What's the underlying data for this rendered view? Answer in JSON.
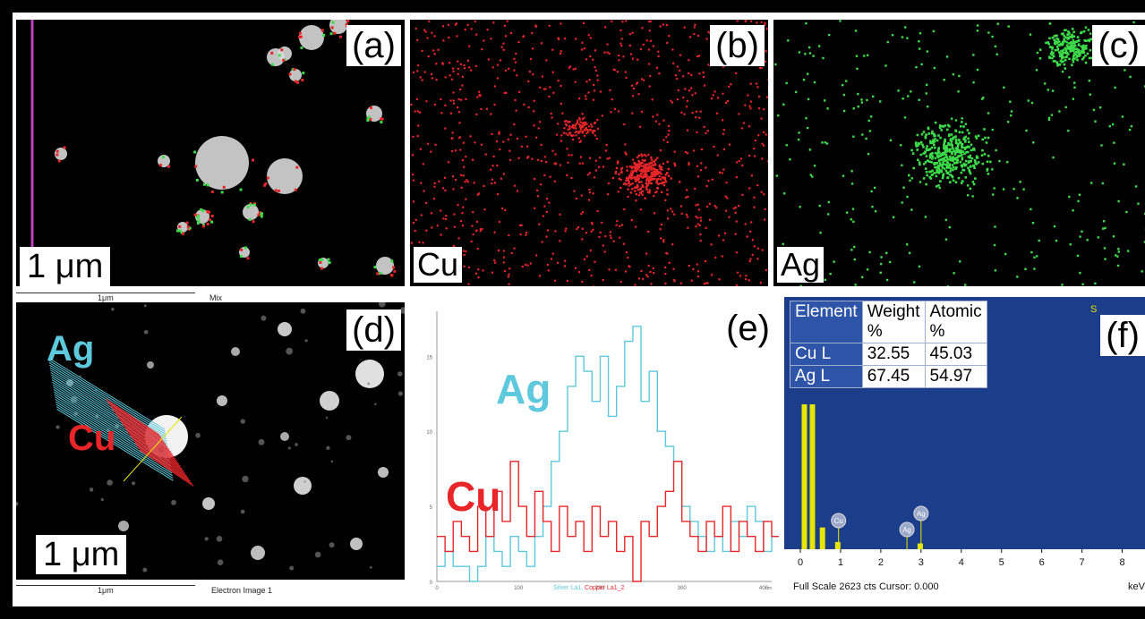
{
  "panels": {
    "a": {
      "label": "(a)",
      "scale_text": "1 μm",
      "scalebar_caption": "1μm",
      "image_caption": "Mix"
    },
    "b": {
      "label": "(b)",
      "element": "Cu"
    },
    "c": {
      "label": "(c)",
      "element": "Ag"
    },
    "d": {
      "label": "(d)",
      "scale_text": "1 μm",
      "scalebar_caption": "1μm",
      "image_caption": "Electron Image 1",
      "ag_label": "Ag",
      "cu_label": "Cu"
    },
    "e": {
      "label": "(e)",
      "ag_label": "Ag",
      "cu_label": "Cu",
      "legend_silver": "Silver La1,",
      "legend_copper": "Copper La1_2",
      "x_unit": "nm"
    },
    "f": {
      "label": "(f)",
      "footer": "Full Scale 2623 cts Cursor: 0.000",
      "x_unit": "keV",
      "corner_text": "S"
    }
  },
  "table": {
    "headers": [
      "Element",
      "Weight %",
      "Atomic %"
    ],
    "header_lines": [
      [
        "Element",
        ""
      ],
      [
        "Weight",
        "%"
      ],
      [
        "Atomic",
        "%"
      ]
    ],
    "rows": [
      {
        "element": "Cu L",
        "weight": "32.55",
        "atomic": "45.03"
      },
      {
        "element": "Ag L",
        "weight": "67.45",
        "atomic": "54.97"
      }
    ]
  },
  "colors": {
    "cu": "#e8262a",
    "ag": "#5ec8dc",
    "green": "#3ddc4a",
    "spectrum_bg": "#1c3e8a",
    "spectrum_fill": "#e6e600"
  },
  "chart_data": [
    {
      "type": "line",
      "panel": "e",
      "x_range": [
        0,
        410
      ],
      "ylim": [
        0,
        18
      ],
      "x_ticks": [
        0,
        100,
        200,
        300,
        400
      ],
      "y_ticks": [
        0,
        5,
        10,
        15
      ],
      "series": [
        {
          "name": "Silver La1,",
          "color": "#5ec8dc",
          "x": [
            0,
            10,
            20,
            30,
            40,
            50,
            60,
            70,
            80,
            90,
            100,
            110,
            120,
            130,
            140,
            150,
            160,
            170,
            180,
            190,
            200,
            210,
            220,
            230,
            240,
            250,
            260,
            270,
            280,
            290,
            300,
            310,
            320,
            330,
            340,
            350,
            360,
            370,
            380,
            390,
            400,
            410
          ],
          "y": [
            1,
            2,
            1,
            1,
            0,
            1,
            3,
            2,
            1,
            3,
            2,
            1,
            3,
            5,
            8,
            10,
            13,
            15,
            14,
            12,
            15,
            11,
            13,
            16,
            17,
            12,
            14,
            10,
            9,
            8,
            5,
            4,
            3,
            2,
            3,
            2,
            4,
            3,
            5,
            4,
            2,
            3
          ]
        },
        {
          "name": "Copper La1_2",
          "color": "#e8262a",
          "x": [
            0,
            10,
            20,
            30,
            40,
            50,
            60,
            70,
            80,
            90,
            100,
            110,
            120,
            130,
            140,
            150,
            160,
            170,
            180,
            190,
            200,
            210,
            220,
            230,
            240,
            250,
            260,
            270,
            280,
            290,
            300,
            310,
            320,
            330,
            340,
            350,
            360,
            370,
            380,
            390,
            400,
            410
          ],
          "y": [
            3,
            2,
            4,
            3,
            2,
            5,
            3,
            6,
            4,
            8,
            5,
            3,
            6,
            4,
            2,
            5,
            3,
            4,
            2,
            5,
            3,
            4,
            2,
            3,
            0,
            4,
            3,
            5,
            6,
            8,
            4,
            3,
            2,
            4,
            3,
            5,
            2,
            4,
            3,
            2,
            4,
            3
          ]
        }
      ]
    },
    {
      "type": "bar",
      "panel": "f",
      "x_range": [
        0,
        8.5
      ],
      "x_ticks": [
        "0",
        "1",
        "2",
        "3",
        "4",
        "5",
        "6",
        "7",
        "8"
      ],
      "peaks": [
        {
          "energy": 0.1,
          "relative": 1.0
        },
        {
          "energy": 0.3,
          "relative": 1.0
        },
        {
          "energy": 0.55,
          "relative": 0.15
        },
        {
          "energy": 0.93,
          "relative": 0.05
        },
        {
          "energy": 2.98,
          "relative": 0.04
        }
      ],
      "peak_markers": [
        {
          "energy": 0.95,
          "label": "Cu"
        },
        {
          "energy": 2.65,
          "label": "Ag"
        },
        {
          "energy": 3.0,
          "label": "Ag"
        }
      ]
    }
  ]
}
